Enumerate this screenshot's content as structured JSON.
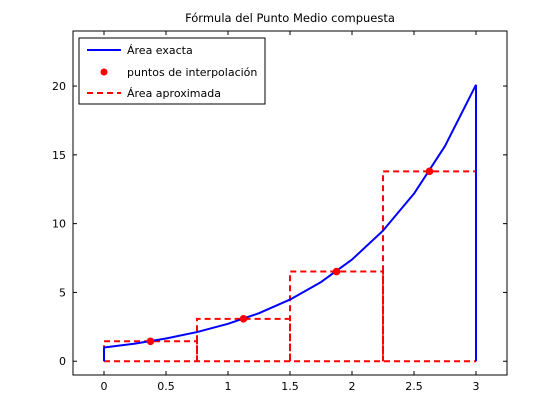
{
  "chart_data": {
    "type": "line",
    "title": "Fórmula del Punto Medio compuesta",
    "xlabel": "",
    "ylabel": "",
    "xlim": [
      -0.25,
      3.25
    ],
    "ylim": [
      -1,
      24
    ],
    "xticks": [
      0,
      0.5,
      1,
      1.5,
      2,
      2.5,
      3
    ],
    "xtick_labels": [
      "0",
      "0.5",
      "1",
      "1.5",
      "2",
      "2.5",
      "3"
    ],
    "yticks": [
      0,
      5,
      10,
      15,
      20
    ],
    "ytick_labels": [
      "0",
      "5",
      "10",
      "15",
      "20"
    ],
    "grid": false,
    "legend_position": "top-left",
    "series": [
      {
        "name": "Área exacta",
        "kind": "curve",
        "color": "#0000ff",
        "style": "solid",
        "x": [
          0,
          0.25,
          0.5,
          0.75,
          1,
          1.25,
          1.5,
          1.75,
          2,
          2.25,
          2.5,
          2.75,
          3
        ],
        "y": [
          1.0,
          1.28,
          1.65,
          2.12,
          2.72,
          3.49,
          4.48,
          5.75,
          7.39,
          9.49,
          12.18,
          15.64,
          20.09
        ]
      },
      {
        "name": "puntos de interpolación",
        "kind": "markers",
        "color": "#ff0000",
        "x": [
          0.375,
          1.125,
          1.875,
          2.625
        ],
        "y": [
          1.45,
          3.08,
          6.52,
          13.8
        ]
      },
      {
        "name": "Área aproximada",
        "kind": "rectangles",
        "color": "#ff0000",
        "style": "dashed",
        "intervals": [
          [
            0,
            0.75
          ],
          [
            0.75,
            1.5
          ],
          [
            1.5,
            2.25
          ],
          [
            2.25,
            3
          ]
        ],
        "heights": [
          1.45,
          3.08,
          6.52,
          13.8
        ]
      }
    ]
  }
}
